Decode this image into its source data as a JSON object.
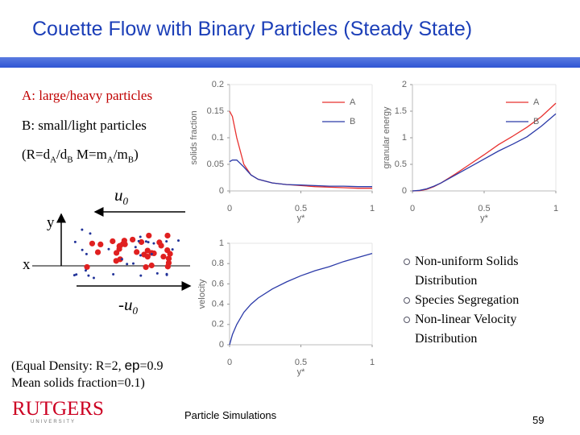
{
  "title": "Couette Flow with Binary Particles (Steady State)",
  "definitions": [
    "A: large/heavy particles",
    "B: small/light particles"
  ],
  "ratio_parts": [
    "(R=d",
    "A",
    "/d",
    "B",
    " M=m",
    "A",
    "/m",
    "B",
    ")"
  ],
  "diagram": {
    "top_label": "u",
    "top_sub": "0",
    "y_label": "y",
    "x_label": "x",
    "bottom_label": "-u",
    "bottom_sub": "0"
  },
  "bullets": [
    "Non-uniform Solids Distribution",
    "Species Segregation",
    "Non-linear Velocity Distribution"
  ],
  "note_line1": [
    "(Equal Density: R=2, ",
    "ep",
    "=0.9"
  ],
  "note_line2": " Mean solids fraction=0.1)",
  "logo": {
    "name": "RUTGERS",
    "sub": "UNIVERSITY"
  },
  "footer": "Particle Simulations",
  "page_number": 59,
  "chart_data": [
    {
      "type": "line",
      "xlabel": "y*",
      "ylabel": "solids fraction",
      "x": [
        0,
        0.02,
        0.05,
        0.1,
        0.15,
        0.2,
        0.3,
        0.4,
        0.5,
        0.6,
        0.7,
        0.8,
        0.9,
        1
      ],
      "series": [
        {
          "name": "A",
          "color": "#e8312f",
          "values": [
            0.15,
            0.14,
            0.1,
            0.05,
            0.03,
            0.022,
            0.015,
            0.012,
            0.01,
            0.008,
            0.007,
            0.006,
            0.005,
            0.005
          ]
        },
        {
          "name": "B",
          "color": "#2b3aa8",
          "values": [
            0.055,
            0.058,
            0.058,
            0.045,
            0.03,
            0.022,
            0.015,
            0.012,
            0.011,
            0.01,
            0.009,
            0.009,
            0.008,
            0.008
          ]
        }
      ],
      "xlim": [
        0,
        1
      ],
      "xticks": [
        0,
        0.5,
        1
      ],
      "ylim": [
        0,
        0.2
      ],
      "yticks": [
        0,
        0.05,
        0.1,
        0.15,
        0.2
      ],
      "legend": "upper right"
    },
    {
      "type": "line",
      "xlabel": "y*",
      "ylabel": "granular energy",
      "x": [
        0,
        0.05,
        0.1,
        0.15,
        0.2,
        0.3,
        0.4,
        0.5,
        0.6,
        0.7,
        0.8,
        0.9,
        1
      ],
      "series": [
        {
          "name": "A",
          "color": "#e8312f",
          "values": [
            0,
            0.005,
            0.03,
            0.08,
            0.15,
            0.32,
            0.5,
            0.68,
            0.87,
            1.03,
            1.2,
            1.4,
            1.65
          ]
        },
        {
          "name": "B",
          "color": "#2b3aa8",
          "values": [
            0,
            0.01,
            0.04,
            0.09,
            0.15,
            0.3,
            0.45,
            0.6,
            0.75,
            0.88,
            1.02,
            1.22,
            1.45
          ]
        }
      ],
      "xlim": [
        0,
        1
      ],
      "xticks": [
        0,
        0.5,
        1
      ],
      "ylim": [
        0,
        2
      ],
      "yticks": [
        0,
        0.5,
        1,
        1.5,
        2
      ],
      "legend": "upper right"
    },
    {
      "type": "line",
      "xlabel": "y*",
      "ylabel": "velocity",
      "x": [
        0,
        0.02,
        0.05,
        0.1,
        0.15,
        0.2,
        0.3,
        0.4,
        0.5,
        0.6,
        0.7,
        0.8,
        0.9,
        1
      ],
      "series": [
        {
          "color": "#2b3aa8",
          "values": [
            0,
            0.1,
            0.2,
            0.32,
            0.4,
            0.46,
            0.55,
            0.62,
            0.68,
            0.73,
            0.77,
            0.82,
            0.86,
            0.9
          ]
        }
      ],
      "xlim": [
        0,
        1
      ],
      "xticks": [
        0,
        0.5,
        1
      ],
      "ylim": [
        0,
        1
      ],
      "yticks": [
        0,
        0.2,
        0.4,
        0.6,
        0.8,
        1
      ]
    }
  ]
}
